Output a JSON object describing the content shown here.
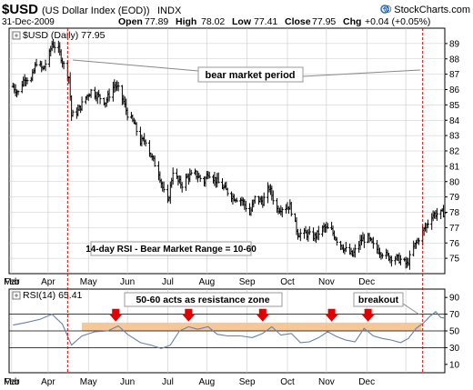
{
  "header": {
    "symbol": "$USD",
    "name": "(US Dollar Index (EOD))",
    "exchange": "INDX",
    "copyright": "© StockCharts.com",
    "date": "31-Dec-2009",
    "open_label": "Open",
    "open": "77.89",
    "high_label": "High",
    "high": "78.02",
    "low_label": "Low",
    "low": "77.41",
    "close_label": "Close",
    "close": "77.95",
    "chg_label": "Chg",
    "chg": "+0.04 (+0.05%)"
  },
  "colors": {
    "accent_red": "#e00000",
    "zone_fill": "#f5c28c",
    "zone_label_red": "#e00000",
    "breakout_green": "#1a7a1a",
    "grid": "#c8c8c8",
    "rsi_line": "#6a7fa8",
    "icon_blue": "#1f6fd0"
  },
  "chart_data": [
    {
      "type": "ohlc",
      "legend": "$USD (Daily) 77.95",
      "ylim": [
        74,
        90
      ],
      "y_ticks": [
        75,
        76,
        77,
        78,
        79,
        80,
        81,
        82,
        83,
        84,
        85,
        86,
        87,
        88,
        89
      ],
      "grid": true,
      "x_labels": [
        "Feb",
        "Mar",
        "Apr",
        "May",
        "Jun",
        "Jul",
        "Aug",
        "Sep",
        "Oct",
        "Nov",
        "Dec"
      ],
      "x_range": [
        "2009-01-30",
        "2009-12-31"
      ],
      "closes": [
        [
          "2009-02-02",
          86.2
        ],
        [
          "2009-02-06",
          85.8
        ],
        [
          "2009-02-11",
          86.8
        ],
        [
          "2009-02-16",
          86.6
        ],
        [
          "2009-02-20",
          87.8
        ],
        [
          "2009-02-25",
          87.3
        ],
        [
          "2009-03-02",
          88.3
        ],
        [
          "2009-03-04",
          89.0
        ],
        [
          "2009-03-09",
          88.6
        ],
        [
          "2009-03-13",
          87.6
        ],
        [
          "2009-03-17",
          86.8
        ],
        [
          "2009-03-19",
          84.3
        ],
        [
          "2009-03-24",
          84.6
        ],
        [
          "2009-03-30",
          85.5
        ],
        [
          "2009-04-03",
          85.9
        ],
        [
          "2009-04-08",
          85.6
        ],
        [
          "2009-04-14",
          85.2
        ],
        [
          "2009-04-21",
          86.3
        ],
        [
          "2009-04-24",
          86.0
        ],
        [
          "2009-04-28",
          85.2
        ],
        [
          "2009-05-01",
          84.4
        ],
        [
          "2009-05-06",
          83.8
        ],
        [
          "2009-05-11",
          82.6
        ],
        [
          "2009-05-15",
          82.7
        ],
        [
          "2009-05-19",
          81.7
        ],
        [
          "2009-05-25",
          80.6
        ],
        [
          "2009-05-29",
          79.3
        ],
        [
          "2009-06-01",
          78.6
        ],
        [
          "2009-06-05",
          80.7
        ],
        [
          "2009-06-09",
          80.0
        ],
        [
          "2009-06-12",
          79.8
        ],
        [
          "2009-06-16",
          80.3
        ],
        [
          "2009-06-22",
          80.5
        ],
        [
          "2009-06-29",
          80.0
        ],
        [
          "2009-07-02",
          80.6
        ],
        [
          "2009-07-09",
          80.0
        ],
        [
          "2009-07-15",
          79.5
        ],
        [
          "2009-07-21",
          79.0
        ],
        [
          "2009-07-28",
          78.8
        ],
        [
          "2009-08-03",
          77.9
        ],
        [
          "2009-08-07",
          78.9
        ],
        [
          "2009-08-13",
          78.7
        ],
        [
          "2009-08-18",
          79.6
        ],
        [
          "2009-08-24",
          78.2
        ],
        [
          "2009-08-28",
          78.3
        ],
        [
          "2009-09-03",
          78.4
        ],
        [
          "2009-09-09",
          76.6
        ],
        [
          "2009-09-15",
          76.6
        ],
        [
          "2009-09-22",
          76.4
        ],
        [
          "2009-09-29",
          77.0
        ],
        [
          "2009-10-05",
          76.8
        ],
        [
          "2009-10-09",
          76.2
        ],
        [
          "2009-10-15",
          75.6
        ],
        [
          "2009-10-21",
          75.2
        ],
        [
          "2009-10-28",
          76.2
        ],
        [
          "2009-11-02",
          76.3
        ],
        [
          "2009-11-06",
          75.8
        ],
        [
          "2009-11-12",
          75.4
        ],
        [
          "2009-11-18",
          75.1
        ],
        [
          "2009-11-24",
          75.0
        ],
        [
          "2009-11-27",
          74.9
        ],
        [
          "2009-12-02",
          74.6
        ],
        [
          "2009-12-07",
          75.7
        ],
        [
          "2009-12-11",
          76.3
        ],
        [
          "2009-12-16",
          77.0
        ],
        [
          "2009-12-21",
          77.8
        ],
        [
          "2009-12-24",
          77.9
        ],
        [
          "2009-12-31",
          77.95
        ]
      ]
    },
    {
      "type": "line",
      "legend": "RSI(14) 65.41",
      "ylim": [
        0,
        100
      ],
      "y_ticks": [
        10,
        30,
        50,
        70,
        90
      ],
      "reference_lines": [
        30,
        50,
        70
      ],
      "resistance_zone": [
        50,
        60
      ],
      "points": [
        [
          "2009-02-02",
          57
        ],
        [
          "2009-02-12",
          60
        ],
        [
          "2009-02-23",
          64
        ],
        [
          "2009-03-04",
          70
        ],
        [
          "2009-03-12",
          58
        ],
        [
          "2009-03-19",
          33
        ],
        [
          "2009-03-27",
          44
        ],
        [
          "2009-04-06",
          49
        ],
        [
          "2009-04-16",
          50
        ],
        [
          "2009-04-24",
          56
        ],
        [
          "2009-05-01",
          46
        ],
        [
          "2009-05-11",
          36
        ],
        [
          "2009-05-19",
          33
        ],
        [
          "2009-05-27",
          29
        ],
        [
          "2009-06-03",
          33
        ],
        [
          "2009-06-10",
          50
        ],
        [
          "2009-06-17",
          55
        ],
        [
          "2009-06-24",
          52
        ],
        [
          "2009-07-02",
          55
        ],
        [
          "2009-07-09",
          46
        ],
        [
          "2009-07-17",
          44
        ],
        [
          "2009-07-27",
          44
        ],
        [
          "2009-08-05",
          42
        ],
        [
          "2009-08-13",
          47
        ],
        [
          "2009-08-20",
          55
        ],
        [
          "2009-08-27",
          45
        ],
        [
          "2009-09-04",
          47
        ],
        [
          "2009-09-11",
          36
        ],
        [
          "2009-09-18",
          37
        ],
        [
          "2009-09-25",
          42
        ],
        [
          "2009-10-02",
          49
        ],
        [
          "2009-10-09",
          43
        ],
        [
          "2009-10-16",
          39
        ],
        [
          "2009-10-23",
          37
        ],
        [
          "2009-10-30",
          53
        ],
        [
          "2009-11-06",
          44
        ],
        [
          "2009-11-13",
          41
        ],
        [
          "2009-11-20",
          39
        ],
        [
          "2009-11-27",
          36
        ],
        [
          "2009-12-03",
          41
        ],
        [
          "2009-12-09",
          53
        ],
        [
          "2009-12-15",
          60
        ],
        [
          "2009-12-20",
          68
        ],
        [
          "2009-12-24",
          73
        ],
        [
          "2009-12-28",
          66
        ],
        [
          "2009-12-31",
          65.41
        ]
      ]
    }
  ],
  "annotations": {
    "bear_market": "bear market period",
    "rsi_range_note": "14-day RSI - Bear Market Range = 10-60",
    "resistance_zone_label": "50-60 acts as resistance zone",
    "breakout_label": "breakout",
    "vlines": [
      "2009-03-16",
      "2009-12-14"
    ],
    "arrow_dates": [
      "2009-04-22",
      "2009-06-17",
      "2009-08-13",
      "2009-10-05",
      "2009-11-02"
    ]
  }
}
